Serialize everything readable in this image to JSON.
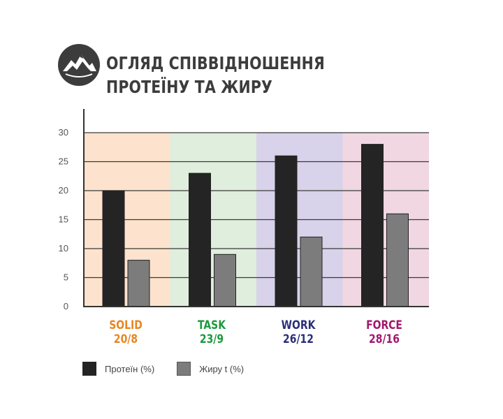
{
  "title_line1": "ОГЛЯД СПІВВІДНОШЕННЯ",
  "title_line2": "ПРОТЕЇНУ ТА ЖИРУ",
  "logo_icon": "mountain-emblem-icon",
  "colors": {
    "protein": "#242424",
    "fat": "#7c7c7c",
    "title": "#3c3c3c"
  },
  "chart_data": {
    "type": "bar",
    "categories": [
      "SOLID",
      "TASK",
      "WORK",
      "FORCE"
    ],
    "category_sublabels": [
      "20/8",
      "23/9",
      "26/12",
      "28/16"
    ],
    "category_colors": [
      "#e8861f",
      "#1a9a3c",
      "#2b2f7a",
      "#a3176f"
    ],
    "band_colors": [
      "#fde3cd",
      "#dfeedd",
      "#d8d2ea",
      "#f0d7e1"
    ],
    "series": [
      {
        "name": "Протеїн (%)",
        "values": [
          20,
          23,
          26,
          28
        ]
      },
      {
        "name": "Жиру t (%)",
        "values": [
          8,
          9,
          12,
          16
        ]
      }
    ],
    "ylim": [
      0,
      30
    ],
    "yticks": [
      0,
      5,
      10,
      15,
      20,
      25,
      30
    ],
    "grid": true,
    "legend_position": "bottom-left"
  }
}
